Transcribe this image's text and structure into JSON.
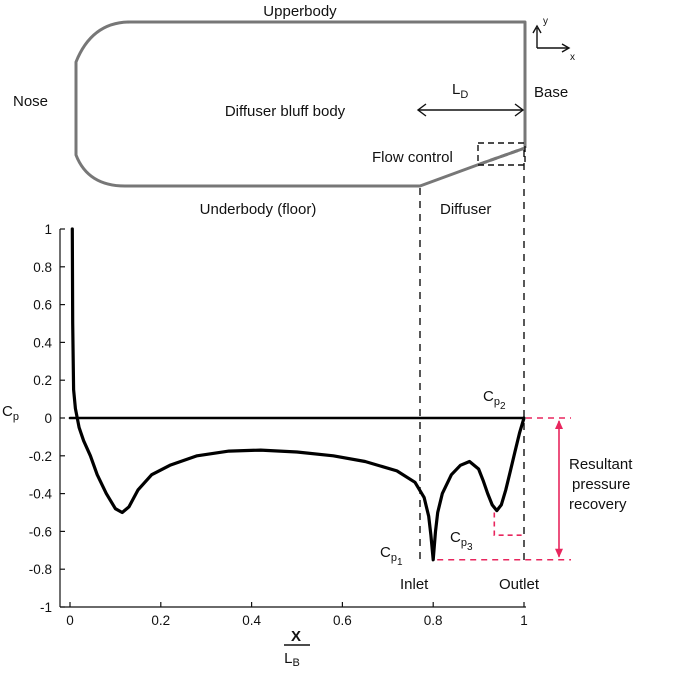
{
  "schematic": {
    "upperbody": "Upperbody",
    "nose": "Nose",
    "base": "Base",
    "body_label": "Diffuser bluff body",
    "flow_control": "Flow control",
    "underbody": "Underbody (floor)",
    "diffuser": "Diffuser",
    "ld_main": "L",
    "ld_sub": "D",
    "axis_y": "y",
    "axis_x": "x",
    "body_color": "#777777"
  },
  "annotations": {
    "cp2_main": "C",
    "cp2_sub": "p",
    "cp2_subsub": "2",
    "cp1_main": "C",
    "cp1_sub": "p",
    "cp1_subsub": "1",
    "cp3_main": "C",
    "cp3_sub": "p",
    "cp3_subsub": "3",
    "inlet": "Inlet",
    "outlet": "Outlet",
    "recovery_line1": "Resultant",
    "recovery_line2": "pressure",
    "recovery_line3": "recovery",
    "recovery_color": "#e8265e"
  },
  "chart_data": {
    "type": "line",
    "ylabel_main": "C",
    "ylabel_sub": "p",
    "xlabel_num": "X",
    "xlabel_den_main": "L",
    "xlabel_den_sub": "B",
    "xlim": [
      0,
      1
    ],
    "ylim": [
      -1,
      1
    ],
    "xticks": [
      "0",
      "0.2",
      "0.4",
      "0.6",
      "0.8",
      "1"
    ],
    "xtick_values": [
      0,
      0.2,
      0.4,
      0.6,
      0.8,
      1
    ],
    "yticks": [
      "1",
      "0.8",
      "0.6",
      "0.4",
      "0.2",
      "0",
      "-0.2",
      "-0.4",
      "-0.6",
      "-0.8",
      "-1"
    ],
    "ytick_values": [
      1,
      0.8,
      0.6,
      0.4,
      0.2,
      0,
      -0.2,
      -0.4,
      -0.6,
      -0.8,
      -1
    ],
    "grid": false,
    "line_color": "#000000",
    "series": [
      {
        "x": [
          0.005,
          0.006,
          0.008,
          0.012,
          0.02,
          0.03,
          0.045,
          0.06,
          0.08,
          0.1,
          0.115,
          0.13,
          0.15,
          0.18,
          0.22,
          0.28,
          0.35,
          0.42,
          0.5,
          0.58,
          0.65,
          0.72,
          0.76,
          0.78,
          0.79,
          0.795,
          0.8,
          0.805,
          0.81,
          0.82,
          0.84,
          0.86,
          0.88,
          0.9,
          0.91,
          0.92,
          0.93,
          0.94,
          0.95,
          0.96,
          0.97,
          0.98,
          0.99,
          1.0
        ],
        "y": [
          1.0,
          0.5,
          0.15,
          0.05,
          -0.05,
          -0.12,
          -0.2,
          -0.3,
          -0.4,
          -0.48,
          -0.5,
          -0.47,
          -0.38,
          -0.3,
          -0.25,
          -0.2,
          -0.175,
          -0.17,
          -0.18,
          -0.2,
          -0.23,
          -0.28,
          -0.34,
          -0.42,
          -0.52,
          -0.62,
          -0.75,
          -0.6,
          -0.5,
          -0.4,
          -0.3,
          -0.25,
          -0.23,
          -0.27,
          -0.33,
          -0.4,
          -0.46,
          -0.49,
          -0.46,
          -0.38,
          -0.28,
          -0.18,
          -0.08,
          0.0
        ]
      },
      {
        "x": [
          0,
          1
        ],
        "y": [
          0,
          0
        ]
      }
    ],
    "reference_points": {
      "cp1": {
        "x": 0.8,
        "y": -0.75
      },
      "cp2": {
        "x": 1.0,
        "y": 0.0
      },
      "cp3": {
        "x": 0.95,
        "y": -0.62
      }
    }
  }
}
